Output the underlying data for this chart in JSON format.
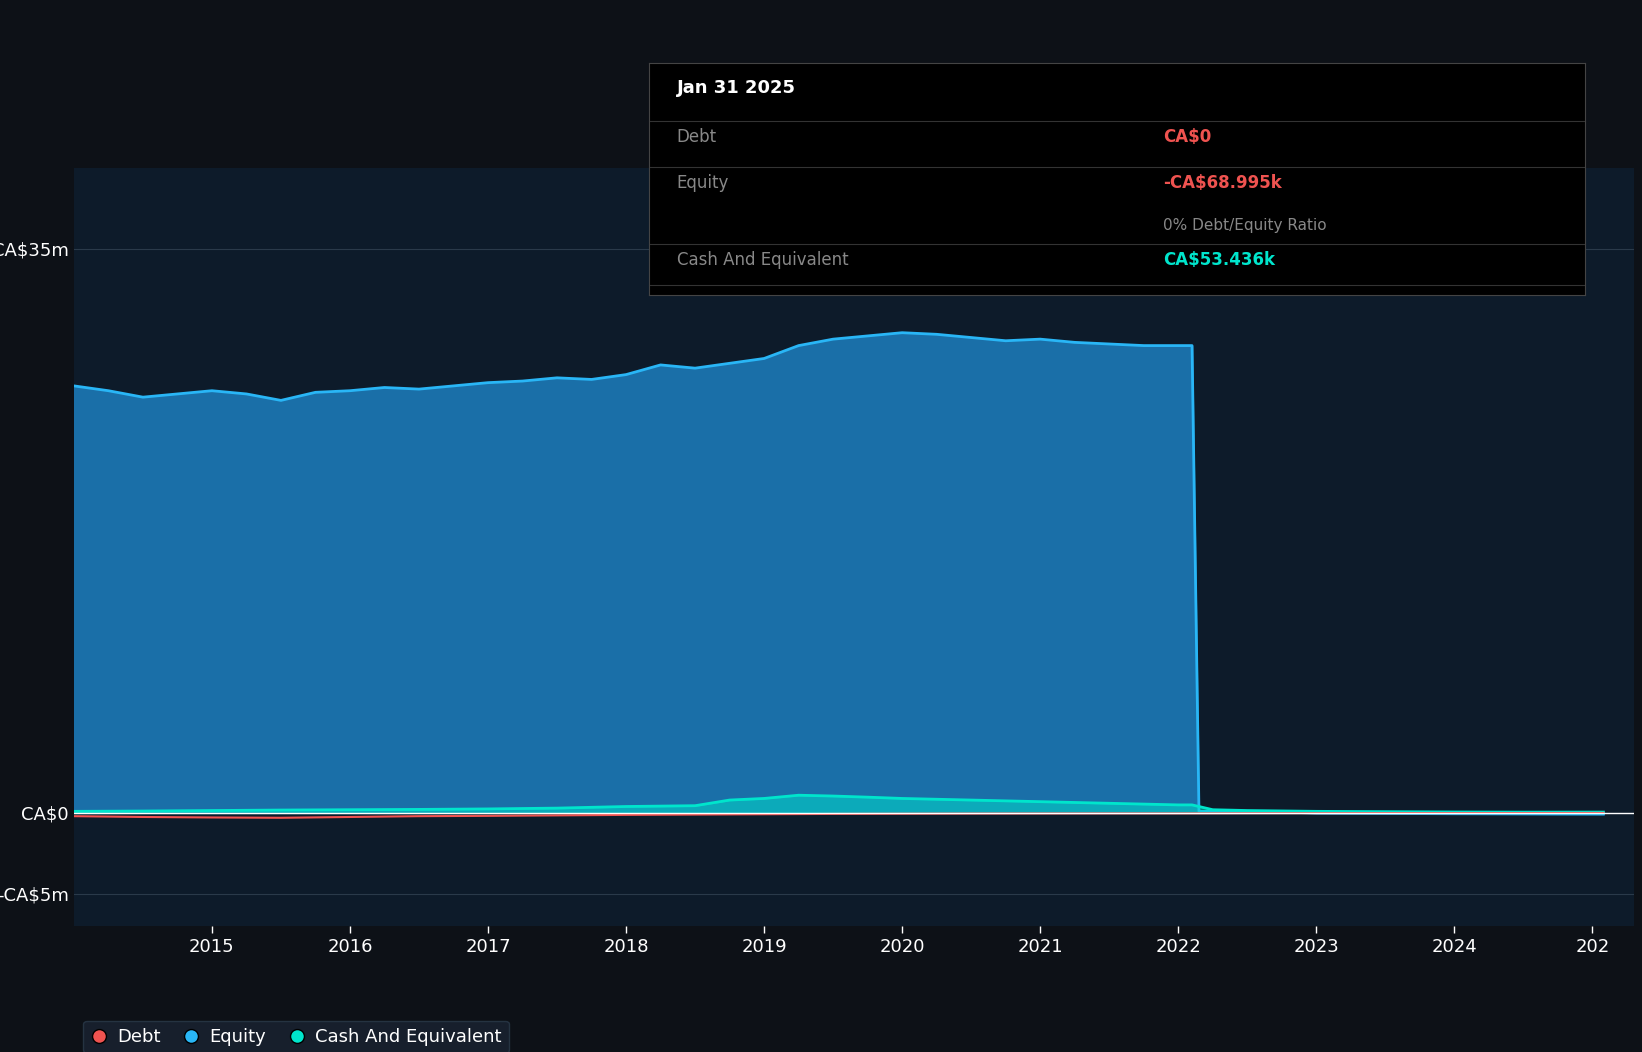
{
  "bg_color": "#0d1117",
  "plot_bg_color": "#0d1b2a",
  "grid_color": "#2a3a4a",
  "ylim": [
    -7000000,
    40000000
  ],
  "yticks": [
    35000000,
    0,
    -5000000
  ],
  "ytick_labels": [
    "CA$35m",
    "CA$0",
    "-CA$5m"
  ],
  "equity_color": "#1a6fa8",
  "equity_line_color": "#29b6f6",
  "debt_color": "#ef5350",
  "cash_color": "#00e5cc",
  "tooltip_title": "Jan 31 2025",
  "tooltip_debt_label": "Debt",
  "tooltip_debt_value": "CA$0",
  "tooltip_equity_label": "Equity",
  "tooltip_equity_value": "-CA$68.995k",
  "tooltip_ratio": "0% Debt/Equity Ratio",
  "tooltip_cash_label": "Cash And Equivalent",
  "tooltip_cash_value": "CA$53.436k",
  "equity_x": [
    2014.0,
    2014.25,
    2014.5,
    2014.75,
    2015.0,
    2015.25,
    2015.5,
    2015.75,
    2016.0,
    2016.25,
    2016.5,
    2016.75,
    2017.0,
    2017.25,
    2017.5,
    2017.75,
    2018.0,
    2018.25,
    2018.5,
    2018.75,
    2019.0,
    2019.25,
    2019.5,
    2019.75,
    2020.0,
    2020.25,
    2020.5,
    2020.75,
    2021.0,
    2021.25,
    2021.5,
    2021.75,
    2022.0,
    2022.1,
    2022.15,
    2022.25,
    2022.5,
    2022.75,
    2023.0,
    2023.25,
    2023.5,
    2023.75,
    2024.0,
    2024.25,
    2024.5,
    2024.75,
    2025.08
  ],
  "equity_y": [
    26500000,
    26200000,
    25800000,
    26000000,
    26200000,
    26000000,
    25600000,
    26100000,
    26200000,
    26400000,
    26300000,
    26500000,
    26700000,
    26800000,
    27000000,
    26900000,
    27200000,
    27800000,
    27600000,
    27900000,
    28200000,
    29000000,
    29400000,
    29600000,
    29800000,
    29700000,
    29500000,
    29300000,
    29400000,
    29200000,
    29100000,
    29000000,
    29000000,
    29000000,
    100000,
    100000,
    80000,
    60000,
    -10000,
    -20000,
    -30000,
    -40000,
    -50000,
    -55000,
    -60000,
    -65000,
    -68995
  ],
  "debt_x": [
    2014.0,
    2014.5,
    2015.0,
    2015.5,
    2016.0,
    2016.5,
    2017.0,
    2017.5,
    2018.0,
    2018.5,
    2019.0,
    2019.5,
    2020.0,
    2020.5,
    2021.0,
    2021.5,
    2022.0,
    2022.5,
    2023.0,
    2023.5,
    2024.0,
    2024.5,
    2025.08
  ],
  "debt_y": [
    -200000,
    -250000,
    -280000,
    -300000,
    -250000,
    -200000,
    -180000,
    -150000,
    -120000,
    -100000,
    -80000,
    -60000,
    -50000,
    -40000,
    -35000,
    -30000,
    -30000,
    -20000,
    -15000,
    -10000,
    -8000,
    -5000,
    0
  ],
  "cash_x": [
    2014.0,
    2014.5,
    2015.0,
    2015.5,
    2016.0,
    2016.5,
    2017.0,
    2017.5,
    2018.0,
    2018.5,
    2018.75,
    2019.0,
    2019.25,
    2019.5,
    2019.75,
    2020.0,
    2020.25,
    2020.5,
    2020.75,
    2021.0,
    2021.5,
    2022.0,
    2022.1,
    2022.25,
    2022.5,
    2023.0,
    2023.5,
    2024.0,
    2024.5,
    2025.08
  ],
  "cash_y": [
    100000,
    120000,
    150000,
    180000,
    200000,
    220000,
    250000,
    300000,
    400000,
    450000,
    800000,
    900000,
    1100000,
    1050000,
    980000,
    900000,
    850000,
    800000,
    750000,
    700000,
    600000,
    500000,
    500000,
    200000,
    150000,
    100000,
    80000,
    60000,
    50000,
    53436
  ],
  "legend_items": [
    {
      "label": "Debt",
      "color": "#ef5350"
    },
    {
      "label": "Equity",
      "color": "#29b6f6"
    },
    {
      "label": "Cash And Equivalent",
      "color": "#00e5cc"
    }
  ]
}
